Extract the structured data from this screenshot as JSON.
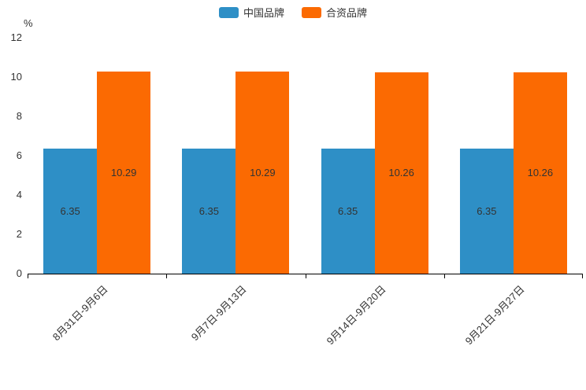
{
  "chart_data": {
    "type": "bar",
    "title": "",
    "unit_label": "%",
    "categories": [
      "8月31日-9月6日",
      "9月7日-9月13日",
      "9月14日-9月20日",
      "9月21日-9月27日"
    ],
    "series": [
      {
        "name": "中国品牌",
        "color": "#2E8FC6",
        "values": [
          6.35,
          6.35,
          6.35,
          6.35
        ]
      },
      {
        "name": "合资品牌",
        "color": "#FB6A02",
        "values": [
          10.29,
          10.29,
          10.26,
          10.26
        ]
      }
    ],
    "ylim": [
      0,
      12
    ],
    "yticks": [
      0,
      2,
      4,
      6,
      8,
      10,
      12
    ],
    "grid": false,
    "legend_position": "top",
    "value_label_decimals": 2
  }
}
